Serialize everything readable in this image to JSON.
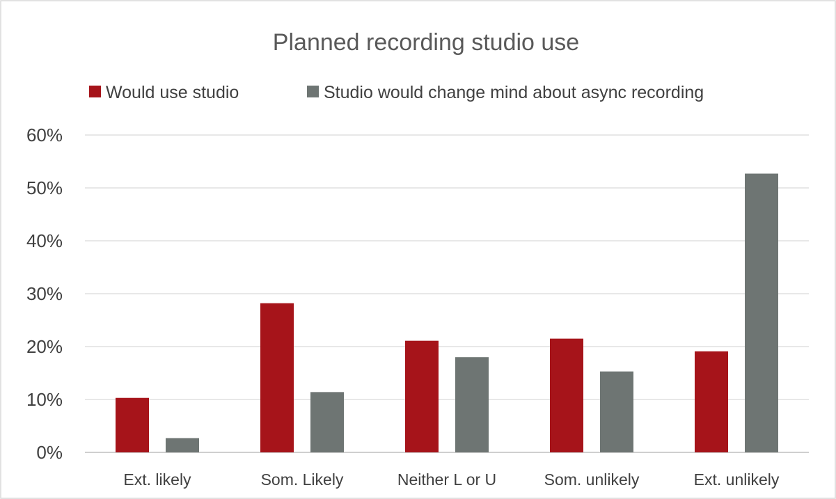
{
  "chart_data": {
    "type": "bar",
    "title": "Planned recording studio use",
    "categories": [
      "Ext. likely",
      "Som. Likely",
      "Neither L or U",
      "Som. unlikely",
      "Ext. unlikely"
    ],
    "series": [
      {
        "name": "Would use studio",
        "color": "#A6141A",
        "values": [
          10.3,
          28.2,
          21.1,
          21.5,
          19.1
        ]
      },
      {
        "name": "Studio would change mind about async recording",
        "color": "#6E7573",
        "values": [
          2.7,
          11.4,
          18.0,
          15.3,
          52.7
        ]
      }
    ],
    "ylim": [
      0,
      60
    ],
    "yticks": [
      0,
      10,
      20,
      30,
      40,
      50,
      60
    ],
    "ytick_labels": [
      "0%",
      "10%",
      "20%",
      "30%",
      "40%",
      "50%",
      "60%"
    ],
    "legend_position": "top",
    "grid": true
  }
}
